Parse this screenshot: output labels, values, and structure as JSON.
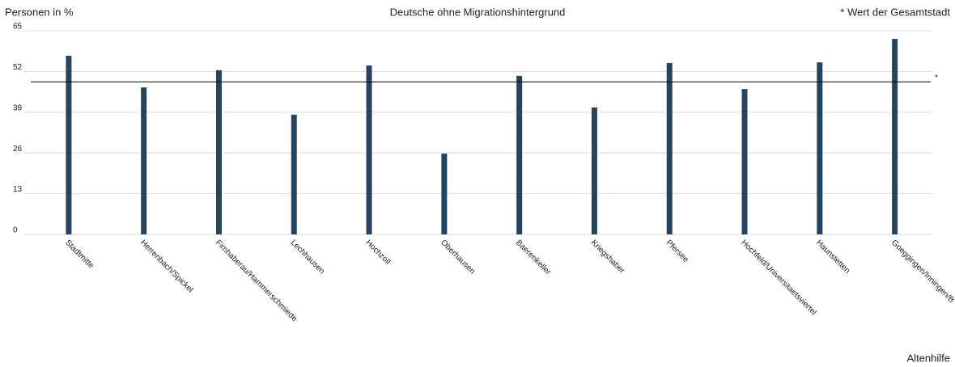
{
  "chart_data": {
    "type": "bar",
    "title": "Deutsche ohne Migrationshintergrund",
    "y_label": "Personen in %",
    "note": "* Wert der Gesamtstadt",
    "footer": "Altenhilfe",
    "categories": [
      "Stadtmitte",
      "Herrenbach/Spickel",
      "Firnhaberau/Hammerschmiede",
      "Lechhausen",
      "Hochzoll",
      "Oberhausen",
      "Baerenkeller",
      "Kriegshaber",
      "Pfersee",
      "Hochfeld/Universitaetsviertel",
      "Haunstetten",
      "Goeggingen/Inningen/B"
    ],
    "values": [
      57.0,
      46.9,
      52.4,
      38.2,
      53.9,
      25.8,
      50.6,
      40.5,
      54.7,
      46.4,
      54.9,
      62.4
    ],
    "color": "#27445e",
    "reference_line": {
      "value": 48.7,
      "label": "*"
    },
    "ylim": [
      0,
      65
    ],
    "yticks": [
      0,
      13,
      26,
      39,
      52,
      65
    ],
    "grid": true
  }
}
